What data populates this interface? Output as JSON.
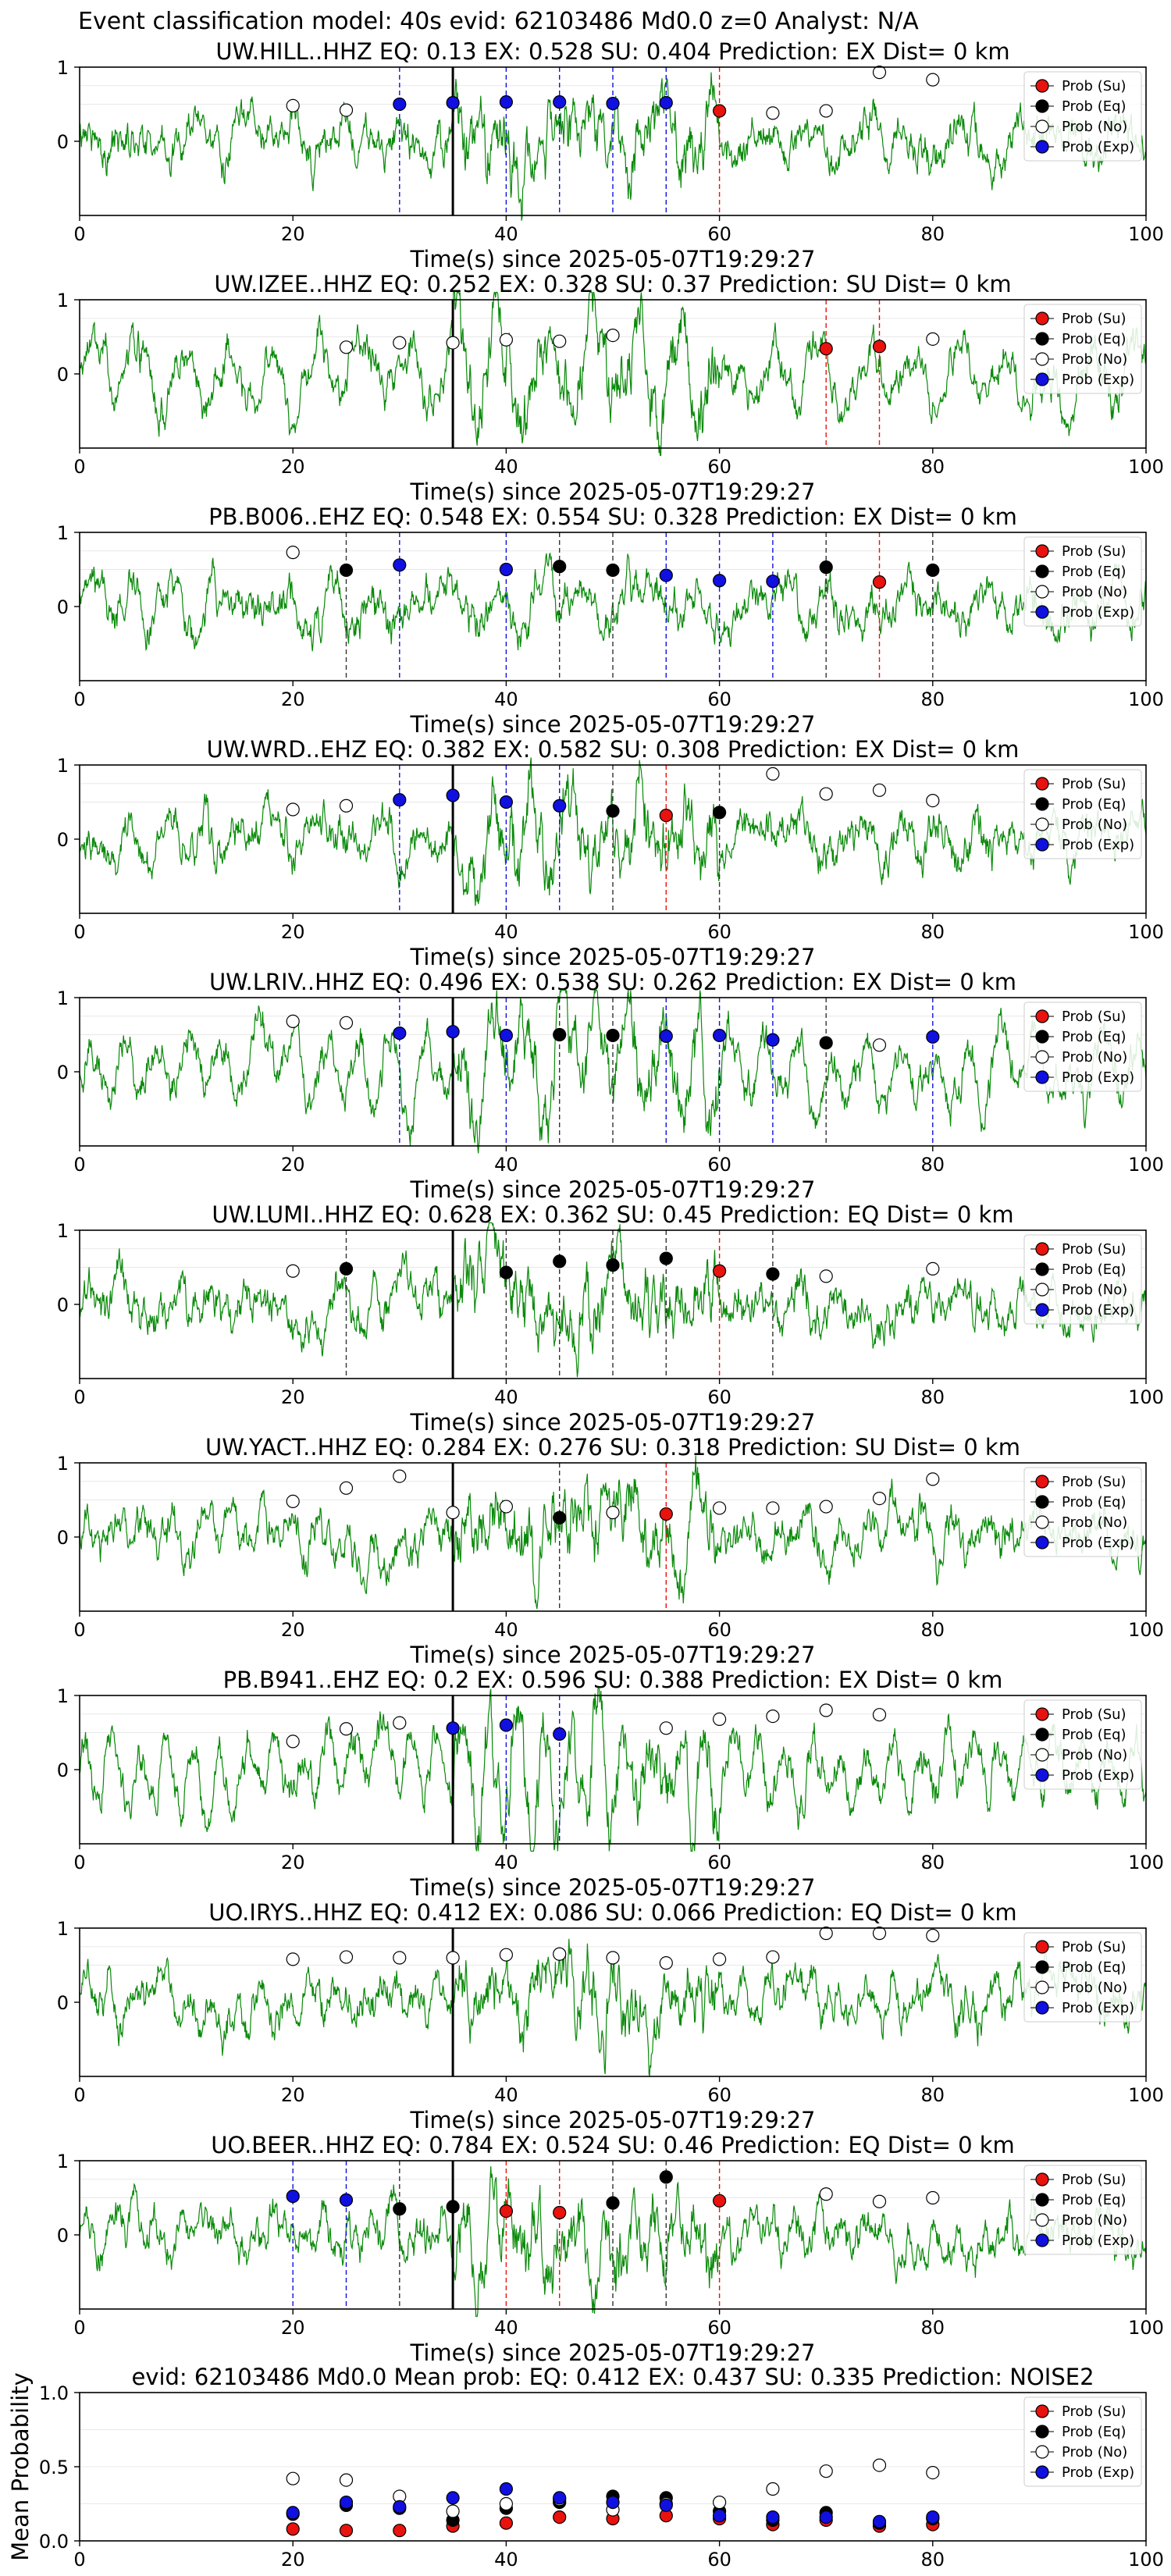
{
  "suptitle": "Event classification model: 40s evid: 62103486 Md0.0 z=0 Analyst: N/A",
  "legend": [
    "Prob (Su)",
    "Prob (Eq)",
    "Prob (No)",
    "Prob (Exp)"
  ],
  "colors": {
    "su": "#e8120e",
    "eq": "#000000",
    "no": "#ffffff",
    "exp": "#1010e0",
    "trace": "#0a8a0a"
  },
  "xlabel": "Time(s) since 2025-05-07T19:29:27",
  "xticks": [
    "0",
    "20",
    "40",
    "60",
    "80",
    "100"
  ],
  "yticks_station": [
    "1",
    "0"
  ],
  "chart_data": [
    {
      "type": "line",
      "title": "UW.HILL..HHZ   EQ: 0.13  EX: 0.528  SU: 0.404   Prediction: EX    Dist= 0 km",
      "xlim": [
        0,
        100
      ],
      "ylim": [
        -1,
        1
      ],
      "pick": 35,
      "points": [
        {
          "x": 20,
          "y": 0.48,
          "c": "no"
        },
        {
          "x": 25,
          "y": 0.42,
          "c": "no"
        },
        {
          "x": 30,
          "y": 0.5,
          "c": "exp"
        },
        {
          "x": 35,
          "y": 0.52,
          "c": "exp"
        },
        {
          "x": 40,
          "y": 0.53,
          "c": "exp"
        },
        {
          "x": 45,
          "y": 0.53,
          "c": "exp"
        },
        {
          "x": 50,
          "y": 0.51,
          "c": "exp"
        },
        {
          "x": 55,
          "y": 0.52,
          "c": "exp"
        },
        {
          "x": 60,
          "y": 0.41,
          "c": "su"
        },
        {
          "x": 65,
          "y": 0.38,
          "c": "no"
        },
        {
          "x": 70,
          "y": 0.41,
          "c": "no"
        },
        {
          "x": 75,
          "y": 0.93,
          "c": "no"
        },
        {
          "x": 80,
          "y": 0.83,
          "c": "no"
        }
      ]
    },
    {
      "type": "line",
      "title": "UW.IZEE..HHZ   EQ: 0.252  EX: 0.328  SU: 0.37   Prediction: SU    Dist= 0 km",
      "xlim": [
        0,
        100
      ],
      "ylim": [
        -1,
        1
      ],
      "pick": 35,
      "points": [
        {
          "x": 25,
          "y": 0.36,
          "c": "no"
        },
        {
          "x": 30,
          "y": 0.42,
          "c": "no"
        },
        {
          "x": 35,
          "y": 0.42,
          "c": "no"
        },
        {
          "x": 40,
          "y": 0.46,
          "c": "no"
        },
        {
          "x": 45,
          "y": 0.44,
          "c": "no"
        },
        {
          "x": 50,
          "y": 0.52,
          "c": "no"
        },
        {
          "x": 70,
          "y": 0.34,
          "c": "su"
        },
        {
          "x": 75,
          "y": 0.37,
          "c": "su"
        },
        {
          "x": 80,
          "y": 0.47,
          "c": "no"
        }
      ]
    },
    {
      "type": "line",
      "title": "PB.B006..EHZ   EQ: 0.548  EX: 0.554  SU: 0.328   Prediction: EX    Dist= 0 km",
      "xlim": [
        0,
        100
      ],
      "ylim": [
        -1,
        1
      ],
      "pick": null,
      "points": [
        {
          "x": 20,
          "y": 0.73,
          "c": "no"
        },
        {
          "x": 25,
          "y": 0.49,
          "c": "eq"
        },
        {
          "x": 30,
          "y": 0.56,
          "c": "exp"
        },
        {
          "x": 40,
          "y": 0.5,
          "c": "exp"
        },
        {
          "x": 45,
          "y": 0.54,
          "c": "eq"
        },
        {
          "x": 50,
          "y": 0.49,
          "c": "eq"
        },
        {
          "x": 55,
          "y": 0.42,
          "c": "exp"
        },
        {
          "x": 60,
          "y": 0.35,
          "c": "exp"
        },
        {
          "x": 65,
          "y": 0.34,
          "c": "exp"
        },
        {
          "x": 70,
          "y": 0.53,
          "c": "eq"
        },
        {
          "x": 75,
          "y": 0.33,
          "c": "su"
        },
        {
          "x": 80,
          "y": 0.49,
          "c": "eq"
        }
      ]
    },
    {
      "type": "line",
      "title": "UW.WRD..EHZ   EQ: 0.382  EX: 0.582  SU: 0.308   Prediction: EX    Dist= 0 km",
      "xlim": [
        0,
        100
      ],
      "ylim": [
        -1,
        1
      ],
      "pick": 35,
      "points": [
        {
          "x": 20,
          "y": 0.4,
          "c": "no"
        },
        {
          "x": 25,
          "y": 0.45,
          "c": "no"
        },
        {
          "x": 30,
          "y": 0.53,
          "c": "exp"
        },
        {
          "x": 35,
          "y": 0.59,
          "c": "exp"
        },
        {
          "x": 40,
          "y": 0.5,
          "c": "exp"
        },
        {
          "x": 45,
          "y": 0.45,
          "c": "exp"
        },
        {
          "x": 50,
          "y": 0.38,
          "c": "eq"
        },
        {
          "x": 55,
          "y": 0.32,
          "c": "su"
        },
        {
          "x": 60,
          "y": 0.36,
          "c": "eq"
        },
        {
          "x": 65,
          "y": 0.88,
          "c": "no"
        },
        {
          "x": 70,
          "y": 0.61,
          "c": "no"
        },
        {
          "x": 75,
          "y": 0.66,
          "c": "no"
        },
        {
          "x": 80,
          "y": 0.52,
          "c": "no"
        }
      ]
    },
    {
      "type": "line",
      "title": "UW.LRIV..HHZ   EQ: 0.496  EX: 0.538  SU: 0.262   Prediction: EX    Dist= 0 km",
      "xlim": [
        0,
        100
      ],
      "ylim": [
        -1,
        1
      ],
      "pick": 35,
      "points": [
        {
          "x": 20,
          "y": 0.68,
          "c": "no"
        },
        {
          "x": 25,
          "y": 0.66,
          "c": "no"
        },
        {
          "x": 30,
          "y": 0.52,
          "c": "exp"
        },
        {
          "x": 35,
          "y": 0.54,
          "c": "exp"
        },
        {
          "x": 40,
          "y": 0.49,
          "c": "exp"
        },
        {
          "x": 45,
          "y": 0.5,
          "c": "eq"
        },
        {
          "x": 50,
          "y": 0.49,
          "c": "eq"
        },
        {
          "x": 55,
          "y": 0.48,
          "c": "exp"
        },
        {
          "x": 60,
          "y": 0.49,
          "c": "exp"
        },
        {
          "x": 65,
          "y": 0.43,
          "c": "exp"
        },
        {
          "x": 70,
          "y": 0.39,
          "c": "eq"
        },
        {
          "x": 75,
          "y": 0.36,
          "c": "no"
        },
        {
          "x": 80,
          "y": 0.47,
          "c": "exp"
        }
      ]
    },
    {
      "type": "line",
      "title": "UW.LUMI..HHZ   EQ: 0.628  EX: 0.362  SU: 0.45   Prediction: EQ    Dist= 0 km",
      "xlim": [
        0,
        100
      ],
      "ylim": [
        -1,
        1
      ],
      "pick": 35,
      "points": [
        {
          "x": 20,
          "y": 0.45,
          "c": "no"
        },
        {
          "x": 25,
          "y": 0.48,
          "c": "eq"
        },
        {
          "x": 40,
          "y": 0.43,
          "c": "eq"
        },
        {
          "x": 45,
          "y": 0.58,
          "c": "eq"
        },
        {
          "x": 50,
          "y": 0.53,
          "c": "eq"
        },
        {
          "x": 55,
          "y": 0.62,
          "c": "eq"
        },
        {
          "x": 60,
          "y": 0.45,
          "c": "su"
        },
        {
          "x": 65,
          "y": 0.41,
          "c": "eq"
        },
        {
          "x": 70,
          "y": 0.38,
          "c": "no"
        },
        {
          "x": 80,
          "y": 0.48,
          "c": "no"
        }
      ]
    },
    {
      "type": "line",
      "title": "UW.YACT..HHZ   EQ: 0.284  EX: 0.276  SU: 0.318   Prediction: SU    Dist= 0 km",
      "xlim": [
        0,
        100
      ],
      "ylim": [
        -1,
        1
      ],
      "pick": 35,
      "points": [
        {
          "x": 20,
          "y": 0.48,
          "c": "no"
        },
        {
          "x": 25,
          "y": 0.66,
          "c": "no"
        },
        {
          "x": 30,
          "y": 0.82,
          "c": "no"
        },
        {
          "x": 35,
          "y": 0.33,
          "c": "no"
        },
        {
          "x": 40,
          "y": 0.41,
          "c": "no"
        },
        {
          "x": 45,
          "y": 0.26,
          "c": "eq"
        },
        {
          "x": 50,
          "y": 0.33,
          "c": "no"
        },
        {
          "x": 55,
          "y": 0.31,
          "c": "su"
        },
        {
          "x": 60,
          "y": 0.39,
          "c": "no"
        },
        {
          "x": 65,
          "y": 0.39,
          "c": "no"
        },
        {
          "x": 70,
          "y": 0.41,
          "c": "no"
        },
        {
          "x": 75,
          "y": 0.52,
          "c": "no"
        },
        {
          "x": 80,
          "y": 0.78,
          "c": "no"
        }
      ]
    },
    {
      "type": "line",
      "title": "PB.B941..EHZ   EQ: 0.2  EX: 0.596  SU: 0.388   Prediction: EX    Dist= 0 km",
      "xlim": [
        0,
        100
      ],
      "ylim": [
        -1,
        1
      ],
      "pick": 35,
      "points": [
        {
          "x": 20,
          "y": 0.38,
          "c": "no"
        },
        {
          "x": 25,
          "y": 0.55,
          "c": "no"
        },
        {
          "x": 30,
          "y": 0.63,
          "c": "no"
        },
        {
          "x": 35,
          "y": 0.56,
          "c": "exp"
        },
        {
          "x": 40,
          "y": 0.6,
          "c": "exp"
        },
        {
          "x": 45,
          "y": 0.48,
          "c": "exp"
        },
        {
          "x": 55,
          "y": 0.56,
          "c": "no"
        },
        {
          "x": 60,
          "y": 0.68,
          "c": "no"
        },
        {
          "x": 65,
          "y": 0.72,
          "c": "no"
        },
        {
          "x": 70,
          "y": 0.8,
          "c": "no"
        },
        {
          "x": 75,
          "y": 0.74,
          "c": "no"
        }
      ]
    },
    {
      "type": "line",
      "title": "UO.IRYS..HHZ   EQ: 0.412  EX: 0.086  SU: 0.066   Prediction: EQ    Dist= 0 km",
      "xlim": [
        0,
        100
      ],
      "ylim": [
        -1,
        1
      ],
      "pick": 35,
      "points": [
        {
          "x": 20,
          "y": 0.58,
          "c": "no"
        },
        {
          "x": 25,
          "y": 0.61,
          "c": "no"
        },
        {
          "x": 30,
          "y": 0.6,
          "c": "no"
        },
        {
          "x": 35,
          "y": 0.6,
          "c": "no"
        },
        {
          "x": 40,
          "y": 0.64,
          "c": "no"
        },
        {
          "x": 45,
          "y": 0.65,
          "c": "no"
        },
        {
          "x": 50,
          "y": 0.6,
          "c": "no"
        },
        {
          "x": 55,
          "y": 0.53,
          "c": "no"
        },
        {
          "x": 60,
          "y": 0.58,
          "c": "no"
        },
        {
          "x": 65,
          "y": 0.61,
          "c": "no"
        },
        {
          "x": 70,
          "y": 0.93,
          "c": "no"
        },
        {
          "x": 75,
          "y": 0.93,
          "c": "no"
        },
        {
          "x": 80,
          "y": 0.9,
          "c": "no"
        }
      ]
    },
    {
      "type": "line",
      "title": "UO.BEER..HHZ   EQ: 0.784  EX: 0.524  SU: 0.46   Prediction: EQ    Dist= 0 km",
      "xlim": [
        0,
        100
      ],
      "ylim": [
        -1,
        1
      ],
      "pick": 35,
      "points": [
        {
          "x": 20,
          "y": 0.52,
          "c": "exp"
        },
        {
          "x": 25,
          "y": 0.47,
          "c": "exp"
        },
        {
          "x": 30,
          "y": 0.35,
          "c": "eq"
        },
        {
          "x": 35,
          "y": 0.38,
          "c": "eq"
        },
        {
          "x": 40,
          "y": 0.32,
          "c": "su"
        },
        {
          "x": 45,
          "y": 0.3,
          "c": "su"
        },
        {
          "x": 50,
          "y": 0.43,
          "c": "eq"
        },
        {
          "x": 55,
          "y": 0.78,
          "c": "eq"
        },
        {
          "x": 60,
          "y": 0.46,
          "c": "su"
        },
        {
          "x": 70,
          "y": 0.55,
          "c": "no"
        },
        {
          "x": 75,
          "y": 0.45,
          "c": "no"
        },
        {
          "x": 80,
          "y": 0.5,
          "c": "no"
        }
      ]
    },
    {
      "type": "scatter",
      "title": "evid: 62103486  Md0.0   Mean prob:   EQ: 0.412  EX: 0.437  SU: 0.335   Prediction: NOISE2",
      "xlim": [
        0,
        100
      ],
      "ylim": [
        0,
        1
      ],
      "ylabel": "Mean Probability",
      "yticks": [
        "1.0",
        "0.5",
        "0.0"
      ],
      "series": [
        {
          "name": "Prob (Su)",
          "key": "su",
          "x": [
            20,
            25,
            30,
            35,
            40,
            45,
            50,
            55,
            60,
            65,
            70,
            75,
            80
          ],
          "values": [
            0.08,
            0.07,
            0.07,
            0.1,
            0.12,
            0.16,
            0.15,
            0.17,
            0.15,
            0.11,
            0.14,
            0.1,
            0.11
          ]
        },
        {
          "name": "Prob (Eq)",
          "key": "eq",
          "x": [
            20,
            25,
            30,
            35,
            40,
            45,
            50,
            55,
            60,
            65,
            70,
            75,
            80
          ],
          "values": [
            0.18,
            0.24,
            0.22,
            0.14,
            0.22,
            0.26,
            0.3,
            0.29,
            0.2,
            0.14,
            0.19,
            0.12,
            0.15
          ]
        },
        {
          "name": "Prob (No)",
          "key": "no",
          "x": [
            20,
            25,
            30,
            35,
            40,
            45,
            50,
            55,
            60,
            65,
            70,
            75,
            80
          ],
          "values": [
            0.42,
            0.41,
            0.3,
            0.2,
            0.25,
            0.28,
            0.21,
            0.25,
            0.26,
            0.35,
            0.47,
            0.51,
            0.46
          ]
        },
        {
          "name": "Prob (Exp)",
          "key": "exp",
          "x": [
            20,
            25,
            30,
            35,
            40,
            45,
            50,
            55,
            60,
            65,
            70,
            75,
            80
          ],
          "values": [
            0.19,
            0.26,
            0.23,
            0.29,
            0.35,
            0.29,
            0.26,
            0.24,
            0.17,
            0.16,
            0.16,
            0.13,
            0.16
          ]
        }
      ]
    }
  ]
}
